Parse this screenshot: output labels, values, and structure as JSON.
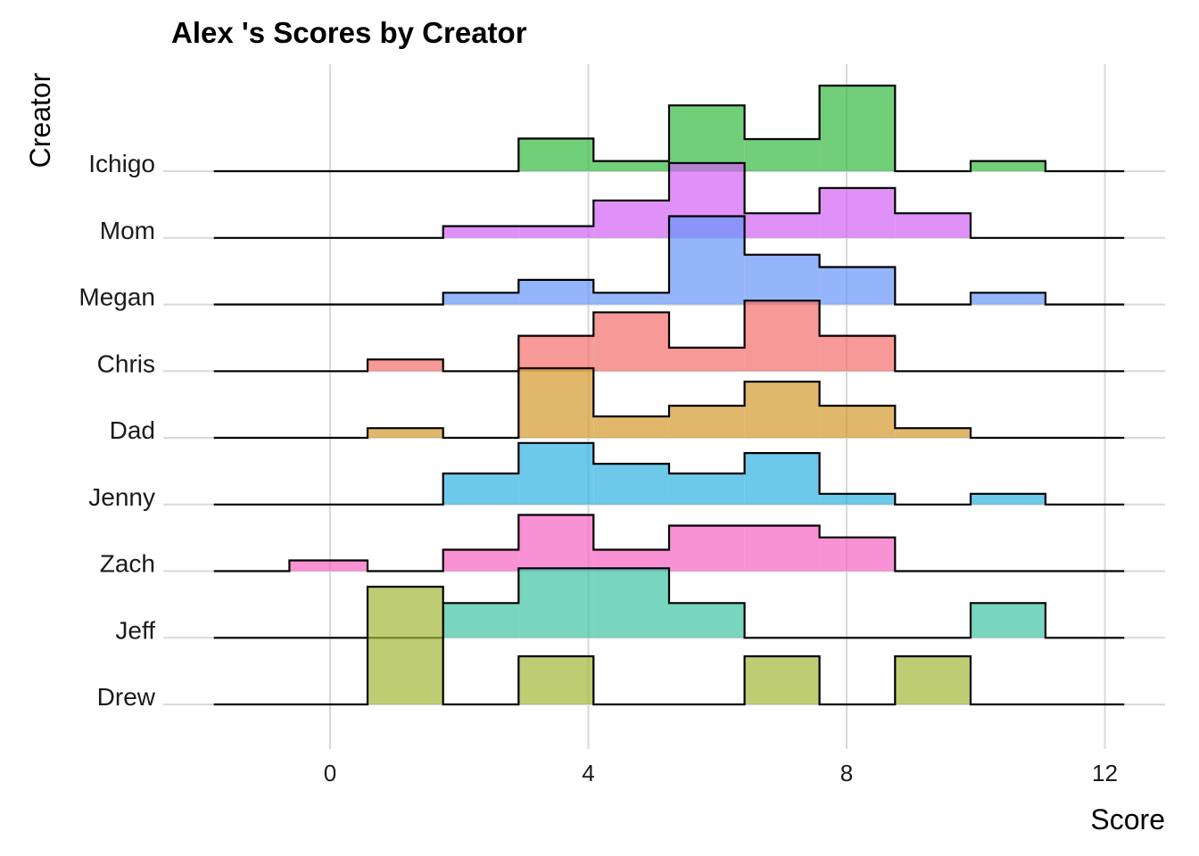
{
  "chart_data": {
    "type": "area",
    "subtype": "ridgeline-histogram",
    "title": "Alex 's Scores by Creator",
    "xlabel": "Score",
    "ylabel": "Creator",
    "xlim": [
      -1.8,
      12.3
    ],
    "x_ticks": [
      0,
      4,
      8,
      12
    ],
    "x_tick_labels": [
      "0",
      "4",
      "8",
      "12"
    ],
    "grid": true,
    "legend": "none",
    "bins": [
      [
        -1.8,
        -0.63
      ],
      [
        -0.63,
        0.58
      ],
      [
        0.58,
        1.75
      ],
      [
        1.75,
        2.92
      ],
      [
        2.92,
        4.08
      ],
      [
        4.08,
        5.25
      ],
      [
        5.25,
        6.42
      ],
      [
        6.42,
        7.58
      ],
      [
        7.58,
        8.75
      ],
      [
        8.75,
        9.92
      ],
      [
        9.92,
        11.08
      ],
      [
        11.08,
        12.3
      ]
    ],
    "series": [
      {
        "name": "Drew",
        "color": "#a3b838",
        "heights": [
          0,
          0,
          2.2,
          0,
          0.9,
          0,
          0,
          0.9,
          0,
          0.9,
          0,
          0
        ]
      },
      {
        "name": "Jeff",
        "color": "#3fc4a4",
        "heights": [
          0,
          0,
          0,
          0.65,
          1.3,
          1.3,
          0.65,
          0,
          0,
          0,
          0.65,
          0
        ]
      },
      {
        "name": "Zach",
        "color": "#f763c3",
        "heights": [
          0,
          0.2,
          0,
          0.4,
          1.05,
          0.4,
          0.85,
          0.85,
          0.63,
          0,
          0,
          0
        ]
      },
      {
        "name": "Jenny",
        "color": "#2fb2e0",
        "heights": [
          0,
          0,
          0,
          0.58,
          1.15,
          0.76,
          0.58,
          0.96,
          0.2,
          0,
          0.2,
          0
        ]
      },
      {
        "name": "Dad",
        "color": "#d49a2c",
        "heights": [
          0,
          0,
          0.18,
          0,
          1.3,
          0.4,
          0.6,
          1.05,
          0.6,
          0.18,
          0,
          0
        ]
      },
      {
        "name": "Chris",
        "color": "#f46d6a",
        "heights": [
          0,
          0,
          0.22,
          0,
          0.66,
          1.1,
          0.44,
          1.32,
          0.66,
          0,
          0,
          0
        ]
      },
      {
        "name": "Megan",
        "color": "#6896f9",
        "heights": [
          0,
          0,
          0,
          0.22,
          0.46,
          0.22,
          1.65,
          0.93,
          0.7,
          0,
          0.22,
          0
        ]
      },
      {
        "name": "Mom",
        "color": "#d163f5",
        "heights": [
          0,
          0,
          0,
          0.22,
          0.22,
          0.7,
          1.4,
          0.46,
          0.93,
          0.46,
          0,
          0
        ]
      },
      {
        "name": "Ichigo",
        "color": "#35ba42",
        "heights": [
          0,
          0,
          0,
          0,
          0.61,
          0.19,
          1.23,
          0.6,
          1.6,
          0,
          0.19,
          0
        ]
      }
    ]
  }
}
